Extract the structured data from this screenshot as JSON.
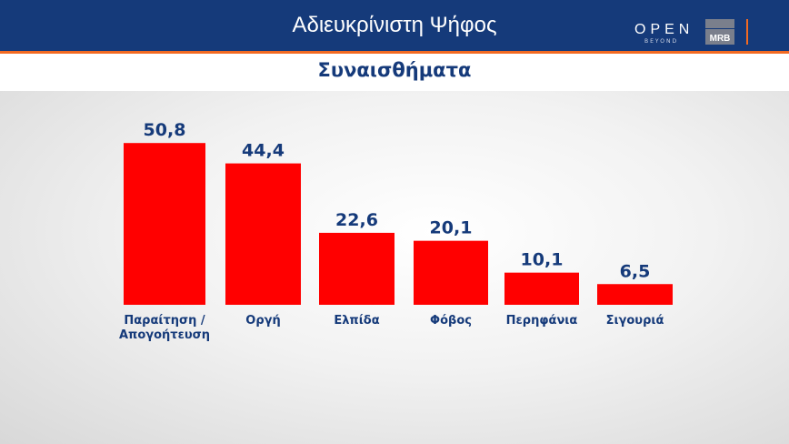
{
  "header": {
    "title": "Αδιευκρίνιστη Ψήφος",
    "subtitle": "Συναισθήματα",
    "logo_open": "OPEN",
    "logo_beyond": "BEYOND",
    "logo_mrb": "MRB"
  },
  "colors": {
    "bar": "#ff0000",
    "label": "#153a7a",
    "header": "#153a7a",
    "accent": "#f26a21"
  },
  "chart_data": {
    "type": "bar",
    "title": "Συναισθήματα",
    "categories": [
      "Παραίτηση / Απογοήτευση",
      "Οργή",
      "Ελπίδα",
      "Φόβος",
      "Περηφάνια",
      "Σιγουριά"
    ],
    "values": [
      50.8,
      44.4,
      22.6,
      20.1,
      10.1,
      6.5
    ],
    "data_labels": [
      "50,8",
      "44,4",
      "22,6",
      "20,1",
      "10,1",
      "6,5"
    ],
    "grid": false
  }
}
